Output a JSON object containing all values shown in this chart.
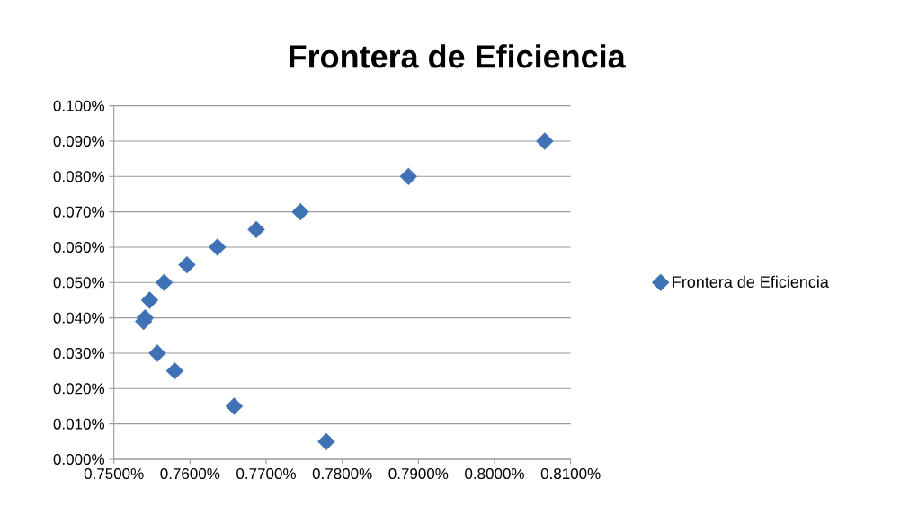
{
  "chart_data": {
    "type": "scatter",
    "title": "Frontera de Eficiencia",
    "series": [
      {
        "name": "Frontera de Eficiencia",
        "color": "#3f72b5",
        "x": [
          0.8066,
          0.7887,
          0.7745,
          0.7687,
          0.7636,
          0.7596,
          0.7566,
          0.7547,
          0.7541,
          0.7539,
          0.7557,
          0.758,
          0.7658,
          0.7779
        ],
        "values": [
          0.09,
          0.08,
          0.07,
          0.065,
          0.06,
          0.055,
          0.05,
          0.045,
          0.04,
          0.039,
          0.03,
          0.025,
          0.015,
          0.005
        ]
      }
    ],
    "xlim": [
      0.75,
      0.81
    ],
    "xticks": [
      {
        "value": 0.75,
        "label": "0.7500%"
      },
      {
        "value": 0.76,
        "label": "0.7600%"
      },
      {
        "value": 0.77,
        "label": "0.7700%"
      },
      {
        "value": 0.78,
        "label": "0.7800%"
      },
      {
        "value": 0.79,
        "label": "0.7900%"
      },
      {
        "value": 0.8,
        "label": "0.8000%"
      },
      {
        "value": 0.81,
        "label": "0.8100%"
      }
    ],
    "ylim": [
      0,
      0.1
    ],
    "yticks": [
      {
        "value": 0,
        "label": "0.000%"
      },
      {
        "value": 0.01,
        "label": "0.010%"
      },
      {
        "value": 0.02,
        "label": "0.020%"
      },
      {
        "value": 0.03,
        "label": "0.030%"
      },
      {
        "value": 0.04,
        "label": "0.040%"
      },
      {
        "value": 0.05,
        "label": "0.050%"
      },
      {
        "value": 0.06,
        "label": "0.060%"
      },
      {
        "value": 0.07,
        "label": "0.070%"
      },
      {
        "value": 0.08,
        "label": "0.080%"
      },
      {
        "value": 0.09,
        "label": "0.090%"
      },
      {
        "value": 0.1,
        "label": "0.100%"
      }
    ],
    "grid": "y",
    "legend": "right",
    "marker": "diamond"
  }
}
